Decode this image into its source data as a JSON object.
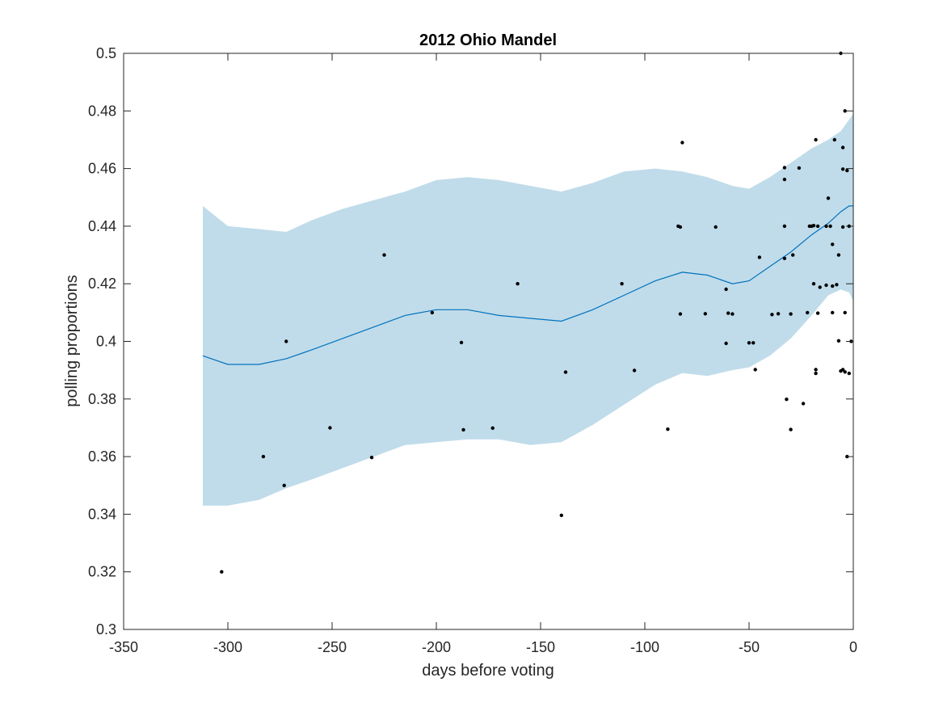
{
  "chart_data": {
    "type": "scatter",
    "title": "2012 Ohio Mandel",
    "xlabel": "days before voting",
    "ylabel": "polling proportions",
    "xlim": [
      -350,
      0
    ],
    "ylim": [
      0.3,
      0.5
    ],
    "xticks": [
      -350,
      -300,
      -250,
      -200,
      -150,
      -100,
      -50,
      0
    ],
    "yticks": [
      0.3,
      0.32,
      0.34,
      0.36,
      0.38,
      0.4,
      0.42,
      0.44,
      0.46,
      0.48,
      0.5
    ],
    "xtick_labels": [
      "-350",
      "-300",
      "-250",
      "-200",
      "-150",
      "-100",
      "-50",
      "0"
    ],
    "ytick_labels": [
      "0.3",
      "0.32",
      "0.34",
      "0.36",
      "0.38",
      "0.4",
      "0.42",
      "0.44",
      "0.46",
      "0.48",
      "0.5"
    ],
    "grid": false,
    "colors": {
      "band": "#c0dcea",
      "mean_line": "#0072bd",
      "points": "#000000",
      "axes": "#262626"
    },
    "band": {
      "x": [
        -312,
        -300,
        -285,
        -272,
        -260,
        -245,
        -230,
        -215,
        -200,
        -185,
        -170,
        -155,
        -140,
        -125,
        -110,
        -95,
        -82,
        -70,
        -58,
        -50,
        -40,
        -30,
        -20,
        -12,
        -6,
        -2,
        0
      ],
      "upper": [
        0.447,
        0.44,
        0.439,
        0.438,
        0.442,
        0.446,
        0.449,
        0.452,
        0.456,
        0.457,
        0.456,
        0.454,
        0.452,
        0.455,
        0.459,
        0.46,
        0.459,
        0.457,
        0.454,
        0.453,
        0.457,
        0.462,
        0.467,
        0.47,
        0.473,
        0.477,
        0.479
      ],
      "lower": [
        0.343,
        0.343,
        0.345,
        0.349,
        0.352,
        0.356,
        0.36,
        0.364,
        0.365,
        0.366,
        0.366,
        0.364,
        0.365,
        0.371,
        0.378,
        0.385,
        0.389,
        0.388,
        0.39,
        0.391,
        0.395,
        0.401,
        0.409,
        0.416,
        0.418,
        0.417,
        0.414
      ]
    },
    "mean": {
      "x": [
        -312,
        -300,
        -285,
        -272,
        -260,
        -245,
        -230,
        -215,
        -200,
        -185,
        -170,
        -155,
        -140,
        -125,
        -110,
        -95,
        -82,
        -70,
        -58,
        -50,
        -40,
        -30,
        -20,
        -12,
        -6,
        -2,
        0
      ],
      "y": [
        0.395,
        0.392,
        0.392,
        0.394,
        0.397,
        0.401,
        0.405,
        0.409,
        0.411,
        0.411,
        0.409,
        0.408,
        0.407,
        0.411,
        0.416,
        0.421,
        0.424,
        0.423,
        0.42,
        0.421,
        0.426,
        0.431,
        0.437,
        0.441,
        0.445,
        0.447,
        0.447
      ]
    },
    "points": [
      [
        -303,
        0.32
      ],
      [
        -283,
        0.36
      ],
      [
        -273,
        0.35
      ],
      [
        -272,
        0.4
      ],
      [
        -251,
        0.37
      ],
      [
        -231,
        0.3597
      ],
      [
        -225,
        0.43
      ],
      [
        -202,
        0.41
      ],
      [
        -188,
        0.3996
      ],
      [
        -187,
        0.3693
      ],
      [
        -173,
        0.3699
      ],
      [
        -161,
        0.42
      ],
      [
        -140,
        0.3396
      ],
      [
        -138,
        0.3893
      ],
      [
        -111,
        0.42
      ],
      [
        -105,
        0.3899
      ],
      [
        -89,
        0.3695
      ],
      [
        -84,
        0.44
      ],
      [
        -83,
        0.4397
      ],
      [
        -83,
        0.4095
      ],
      [
        -82,
        0.469
      ],
      [
        -71,
        0.4096
      ],
      [
        -66,
        0.4397
      ],
      [
        -61,
        0.4181
      ],
      [
        -61,
        0.3993
      ],
      [
        -60,
        0.4098
      ],
      [
        -58,
        0.4095
      ],
      [
        -50,
        0.3995
      ],
      [
        -48,
        0.3995
      ],
      [
        -47,
        0.3902
      ],
      [
        -45,
        0.4292
      ],
      [
        -39,
        0.4093
      ],
      [
        -36,
        0.4096
      ],
      [
        -33,
        0.4603
      ],
      [
        -33,
        0.4562
      ],
      [
        -33,
        0.44
      ],
      [
        -33,
        0.4288
      ],
      [
        -32,
        0.3799
      ],
      [
        -30,
        0.3694
      ],
      [
        -30,
        0.4095
      ],
      [
        -29,
        0.43
      ],
      [
        -26,
        0.4602
      ],
      [
        -24,
        0.3784
      ],
      [
        -22,
        0.41
      ],
      [
        -21,
        0.44
      ],
      [
        -20,
        0.44
      ],
      [
        -19,
        0.4402
      ],
      [
        -19,
        0.42
      ],
      [
        -18,
        0.47
      ],
      [
        -18,
        0.3902
      ],
      [
        -18,
        0.3889
      ],
      [
        -17,
        0.4098
      ],
      [
        -17,
        0.44
      ],
      [
        -16,
        0.4188
      ],
      [
        -13,
        0.4195
      ],
      [
        -13,
        0.44
      ],
      [
        -12,
        0.4497
      ],
      [
        -11,
        0.44
      ],
      [
        -10,
        0.41
      ],
      [
        -10,
        0.4192
      ],
      [
        -10,
        0.4337
      ],
      [
        -9,
        0.47
      ],
      [
        -8,
        0.4197
      ],
      [
        -7,
        0.43
      ],
      [
        -7,
        0.4002
      ],
      [
        -6,
        0.5
      ],
      [
        -6,
        0.3897
      ],
      [
        -5,
        0.4673
      ],
      [
        -5,
        0.4397
      ],
      [
        -5,
        0.4598
      ],
      [
        -5,
        0.3902
      ],
      [
        -4,
        0.48
      ],
      [
        -4,
        0.41
      ],
      [
        -4,
        0.3894
      ],
      [
        -3,
        0.4593
      ],
      [
        -3,
        0.36
      ],
      [
        -2,
        0.3889
      ],
      [
        -2,
        0.44
      ],
      [
        -1,
        0.4
      ]
    ]
  }
}
